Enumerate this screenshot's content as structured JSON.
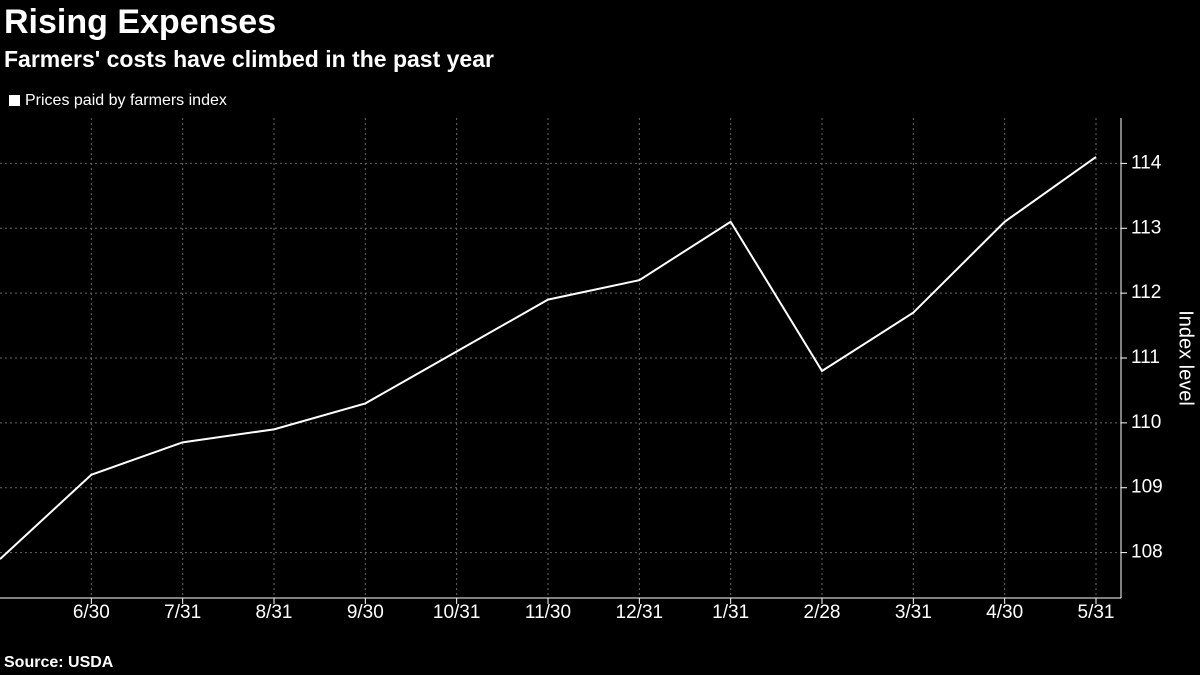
{
  "chart_data": {
    "type": "line",
    "title": "Rising Expenses",
    "subtitle": "Farmers' costs have climbed in the past year",
    "source": "Source: USDA",
    "y_label": "Index level",
    "categories": [
      null,
      "6/30",
      "7/31",
      "8/31",
      "9/30",
      "10/31",
      "11/30",
      "12/31",
      "1/31",
      "2/28",
      "3/31",
      "4/30",
      "5/31"
    ],
    "series": [
      {
        "name": "Prices paid by farmers index",
        "color": "#ffffff",
        "values": [
          107.9,
          109.2,
          109.7,
          109.9,
          110.3,
          111.1,
          111.9,
          112.2,
          113.1,
          110.8,
          111.7,
          113.1,
          114.1
        ]
      }
    ],
    "ylim": [
      107.3,
      114.7
    ],
    "yticks": [
      108,
      109,
      110,
      111,
      112,
      113,
      114
    ],
    "grid": true
  }
}
